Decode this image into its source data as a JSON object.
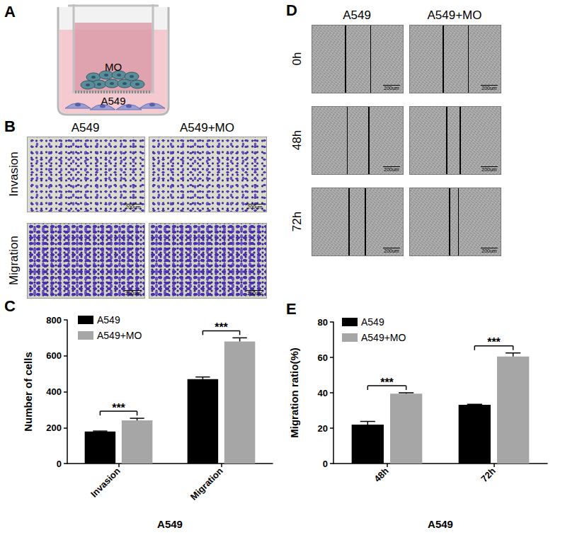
{
  "panel_letters": [
    "A",
    "B",
    "C",
    "D",
    "E"
  ],
  "panels": {
    "A": {
      "insert_label": "MO",
      "bottom_label": "A549"
    },
    "B": {
      "columns": [
        "A549",
        "A549+MO"
      ],
      "rows": [
        "Invasion",
        "Migration"
      ],
      "scale_bar": "200um"
    },
    "D": {
      "columns": [
        "A549",
        "A549+MO"
      ],
      "rows": [
        "0h",
        "48h",
        "72h"
      ],
      "scale_bar": "200um"
    }
  },
  "chart_data": [
    {
      "type": "bar",
      "x_label": "A549",
      "y_label": "Number of cells",
      "categories": [
        "Invasion",
        "Migration"
      ],
      "series": [
        {
          "name": "A549",
          "color": "#000000",
          "values": [
            178,
            470
          ],
          "errors": [
            3,
            12
          ]
        },
        {
          "name": "A549+MO",
          "color": "#a6a6a6",
          "values": [
            240,
            680
          ],
          "errors": [
            12,
            20
          ]
        }
      ],
      "ylim": [
        0,
        800
      ],
      "yticks": [
        0,
        200,
        400,
        600,
        800
      ],
      "grid": false,
      "legend": "upper left",
      "annotations": [
        {
          "text": "***",
          "category": "Invasion"
        },
        {
          "text": "***",
          "category": "Migration"
        }
      ]
    },
    {
      "type": "bar",
      "x_label": "A549",
      "y_label": "Migration ratio(%)",
      "categories": [
        "48h",
        "72h"
      ],
      "series": [
        {
          "name": "A549",
          "color": "#000000",
          "values": [
            22,
            33.2
          ],
          "errors": [
            1.8,
            0.3
          ]
        },
        {
          "name": "A549+MO",
          "color": "#a6a6a6",
          "values": [
            39.5,
            60.5
          ],
          "errors": [
            0.5,
            2
          ]
        }
      ],
      "ylim": [
        0,
        80
      ],
      "yticks": [
        0,
        20,
        40,
        60,
        80
      ],
      "grid": false,
      "legend": "upper left",
      "annotations": [
        {
          "text": "***",
          "category": "48h"
        },
        {
          "text": "***",
          "category": "72h"
        }
      ]
    }
  ]
}
